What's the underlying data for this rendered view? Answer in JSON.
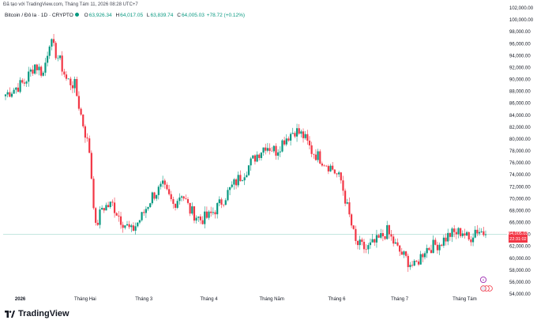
{
  "header": {
    "text": "Đã tạo với TradingView.com, Tháng Tám 11, 2026 08:28 UTC+7"
  },
  "symbol": {
    "name": "Bitcoin / Đô la · 1D · CRYPTO",
    "open_label": "O",
    "open": "63,926.34",
    "high_label": "H",
    "high": "64,017.05",
    "low_label": "L",
    "low": "63,839.74",
    "close_label": "C",
    "close": "64,005.03",
    "change": "+78.72 (+0.12%)"
  },
  "price_tag": {
    "price": "64,005.03",
    "countdown": "22:31:02"
  },
  "footer": {
    "brand": "TradingView"
  },
  "colors": {
    "up": "#089981",
    "down": "#f23645",
    "last_price_line": "#089981"
  },
  "chart_data": {
    "type": "candlestick",
    "ylim": [
      54000,
      102000
    ],
    "y_ticks": [
      54000,
      56000,
      58000,
      60000,
      62000,
      64000,
      66000,
      68000,
      70000,
      72000,
      74000,
      76000,
      78000,
      80000,
      82000,
      84000,
      86000,
      88000,
      90000,
      92000,
      94000,
      96000,
      98000,
      100000,
      102000
    ],
    "y_tick_labels": [
      "54,000.00",
      "56,000.00",
      "58,000.00",
      "60,000.00",
      "62,000.00",
      "64,000.00",
      "66,000.00",
      "68,000.00",
      "70,000.00",
      "72,000.00",
      "74,000.00",
      "76,000.00",
      "78,000.00",
      "80,000.00",
      "82,000.00",
      "84,000.00",
      "86,000.00",
      "88,000.00",
      "90,000.00",
      "92,000.00",
      "94,000.00",
      "96,000.00",
      "98,000.00",
      "100,000.00",
      "102,000.00"
    ],
    "x_ticks": [
      {
        "label": "2026",
        "date": "2026-01-01",
        "bold": true
      },
      {
        "label": "Tháng Hai",
        "date": "2026-02-01"
      },
      {
        "label": "Tháng 3",
        "date": "2026-03-01"
      },
      {
        "label": "Tháng 4",
        "date": "2026-04-01"
      },
      {
        "label": "Tháng Năm",
        "date": "2026-05-01"
      },
      {
        "label": "Tháng 6",
        "date": "2026-06-01"
      },
      {
        "label": "Tháng 7",
        "date": "2026-07-01"
      },
      {
        "label": "Tháng Tám",
        "date": "2026-08-01"
      }
    ],
    "start_date": "2025-12-25",
    "end_date": "2026-08-11",
    "anchor_closes": [
      [
        "2025-12-25",
        87500
      ],
      [
        "2026-01-03",
        89500
      ],
      [
        "2026-01-08",
        92500
      ],
      [
        "2026-01-12",
        91000
      ],
      [
        "2026-01-15",
        96500
      ],
      [
        "2026-01-20",
        93000
      ],
      [
        "2026-01-23",
        90000
      ],
      [
        "2026-01-27",
        89000
      ],
      [
        "2026-01-30",
        84000
      ],
      [
        "2026-02-03",
        78000
      ],
      [
        "2026-02-06",
        65000
      ],
      [
        "2026-02-09",
        68500
      ],
      [
        "2026-02-14",
        69000
      ],
      [
        "2026-02-18",
        66500
      ],
      [
        "2026-02-23",
        64500
      ],
      [
        "2026-02-28",
        67000
      ],
      [
        "2026-03-05",
        70500
      ],
      [
        "2026-03-10",
        72000
      ],
      [
        "2026-03-15",
        69000
      ],
      [
        "2026-03-19",
        71000
      ],
      [
        "2026-03-23",
        68000
      ],
      [
        "2026-03-28",
        66500
      ],
      [
        "2026-04-01",
        67000
      ],
      [
        "2026-04-06",
        69000
      ],
      [
        "2026-04-12",
        72000
      ],
      [
        "2026-04-18",
        74500
      ],
      [
        "2026-04-23",
        77000
      ],
      [
        "2026-04-28",
        79000
      ],
      [
        "2026-05-03",
        78000
      ],
      [
        "2026-05-07",
        80000
      ],
      [
        "2026-05-12",
        81500
      ],
      [
        "2026-05-16",
        80500
      ],
      [
        "2026-05-20",
        78000
      ],
      [
        "2026-05-25",
        76500
      ],
      [
        "2026-05-30",
        75000
      ],
      [
        "2026-06-03",
        73000
      ],
      [
        "2026-06-07",
        67000
      ],
      [
        "2026-06-10",
        62500
      ],
      [
        "2026-06-15",
        61500
      ],
      [
        "2026-06-20",
        62800
      ],
      [
        "2026-06-25",
        64500
      ],
      [
        "2026-06-30",
        61500
      ],
      [
        "2026-07-05",
        59500
      ],
      [
        "2026-07-08",
        58500
      ],
      [
        "2026-07-13",
        61500
      ],
      [
        "2026-07-20",
        62500
      ],
      [
        "2026-07-25",
        64000
      ],
      [
        "2026-07-31",
        64500
      ],
      [
        "2026-08-03",
        63000
      ],
      [
        "2026-08-06",
        64800
      ],
      [
        "2026-08-09",
        64500
      ],
      [
        "2026-08-11",
        64005
      ]
    ],
    "last_price": 64005.03
  }
}
